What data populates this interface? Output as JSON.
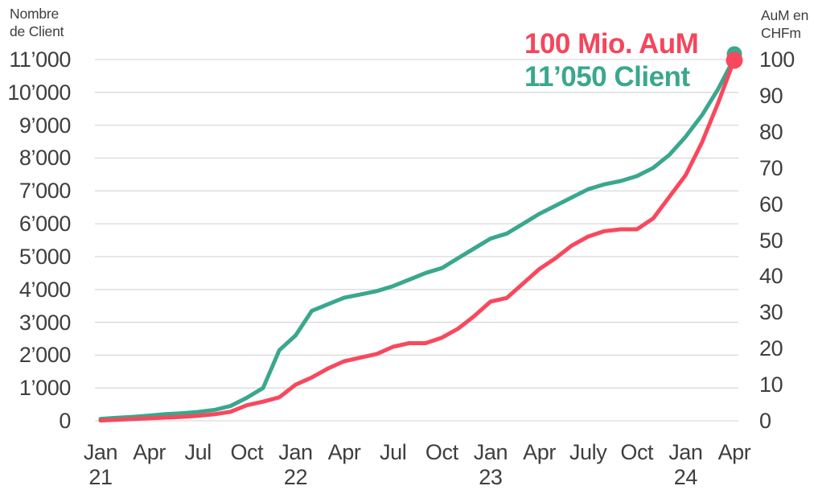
{
  "colors": {
    "teal": "#3aa78e",
    "red": "#f8485e",
    "annotation_red": "#f4465c",
    "grid": "#d9d9d9",
    "text": "#3e3e3e"
  },
  "chart_data": {
    "type": "line",
    "grid": "horizontal",
    "legend_position": "none",
    "left_axis": {
      "title_line1": "Nombre",
      "title_line2": "de Client",
      "range": [
        0,
        11000
      ],
      "ticks": [
        "11’000",
        "10’000",
        "9’000",
        "8’000",
        "7’000",
        "6’000",
        "5’000",
        "4’000",
        "3’000",
        "2’000",
        "1’000",
        "0"
      ]
    },
    "right_axis": {
      "title_line1": "AuM en",
      "title_line2": "CHFm",
      "range": [
        0,
        100
      ],
      "ticks": [
        "100",
        "90",
        "80",
        "70",
        "60",
        "50",
        "40",
        "30",
        "20",
        "10",
        "0"
      ]
    },
    "x_axis": {
      "ticks": [
        {
          "month": "Jan",
          "year": "21"
        },
        {
          "month": "Apr",
          "year": ""
        },
        {
          "month": "Jul",
          "year": ""
        },
        {
          "month": "Oct",
          "year": ""
        },
        {
          "month": "Jan",
          "year": "22"
        },
        {
          "month": "Apr",
          "year": ""
        },
        {
          "month": "Jul",
          "year": ""
        },
        {
          "month": "Oct",
          "year": ""
        },
        {
          "month": "Jan",
          "year": "23"
        },
        {
          "month": "Apr",
          "year": ""
        },
        {
          "month": "July",
          "year": ""
        },
        {
          "month": "Oct",
          "year": ""
        },
        {
          "month": "Jan",
          "year": "24"
        },
        {
          "month": "Apr",
          "year": ""
        }
      ]
    },
    "months": [
      "Jan 21",
      "Feb 21",
      "Mar 21",
      "Apr 21",
      "May 21",
      "Jun 21",
      "Jul 21",
      "Aug 21",
      "Sep 21",
      "Oct 21",
      "Nov 21",
      "Dec 21",
      "Jan 22",
      "Feb 22",
      "Mar 22",
      "Apr 22",
      "May 22",
      "Jun 22",
      "Jul 22",
      "Aug 22",
      "Sep 22",
      "Oct 22",
      "Nov 22",
      "Dec 22",
      "Jan 23",
      "Feb 23",
      "Mar 23",
      "Apr 23",
      "May 23",
      "Jun 23",
      "Jul 23",
      "Aug 23",
      "Sep 23",
      "Oct 23",
      "Nov 23",
      "Dec 23",
      "Jan 24",
      "Feb 24",
      "Mar 24",
      "Apr 24"
    ],
    "series": [
      {
        "name": "Nombre de Client",
        "axis": "left",
        "color": "#3aa78e",
        "values": [
          60,
          90,
          120,
          160,
          200,
          230,
          270,
          330,
          450,
          700,
          1000,
          2150,
          2600,
          3350,
          3550,
          3750,
          3850,
          3950,
          4100,
          4300,
          4500,
          4650,
          4950,
          5250,
          5550,
          5700,
          6000,
          6300,
          6550,
          6800,
          7050,
          7200,
          7300,
          7450,
          7700,
          8100,
          8650,
          9300,
          10100,
          11050
        ]
      },
      {
        "name": "AuM en CHFm",
        "axis": "right",
        "color": "#f8485e",
        "values": [
          0.1,
          0.3,
          0.5,
          0.7,
          0.9,
          1.1,
          1.4,
          1.8,
          2.5,
          4.3,
          5.3,
          6.5,
          10,
          12,
          14.5,
          16.5,
          17.5,
          18.5,
          20.5,
          21.5,
          21.5,
          23,
          25.5,
          29,
          33,
          34,
          38,
          42,
          45,
          48.5,
          51,
          52.5,
          53,
          53,
          56,
          62,
          68,
          77,
          88,
          100
        ]
      }
    ],
    "annotations": [
      {
        "text": "100 Mio. AuM",
        "color": "#f4465c",
        "series": "AuM en CHFm"
      },
      {
        "text": "11’050 Client",
        "color": "#3aa78e",
        "series": "Nombre de Client"
      }
    ],
    "endpoints": [
      {
        "series": "Nombre de Client",
        "x": "Apr 24",
        "value": 11050
      },
      {
        "series": "AuM en CHFm",
        "x": "Apr 24",
        "value": 100
      }
    ]
  }
}
